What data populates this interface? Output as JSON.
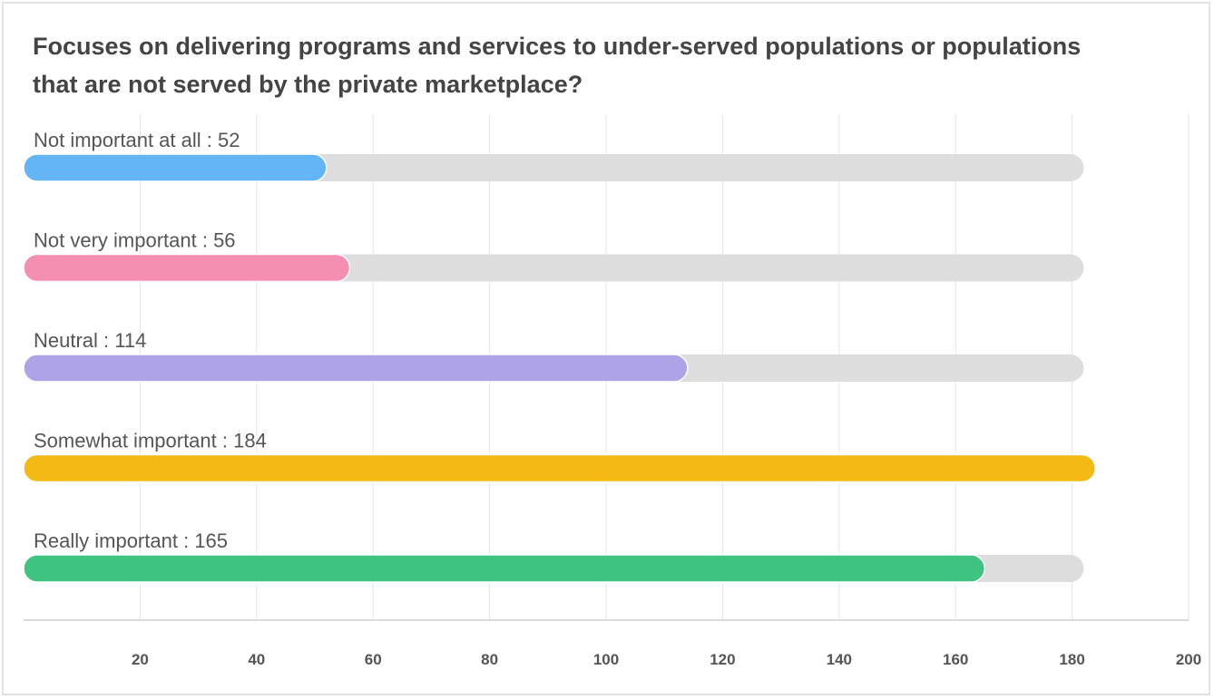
{
  "chart_data": {
    "type": "bar",
    "orientation": "horizontal",
    "title": "Focuses on delivering programs and services to under-served populations or populations that are not served by the private marketplace?",
    "categories": [
      "Not important at all",
      "Not very important",
      "Neutral",
      "Somewhat important",
      "Really important"
    ],
    "values": [
      52,
      56,
      114,
      184,
      165
    ],
    "colors": [
      "#64b5f6",
      "#f48fb1",
      "#ada3e6",
      "#f2ba12",
      "#3ec480"
    ],
    "track_color": "#dddddd",
    "track_max": 182,
    "xlim": [
      0,
      200
    ],
    "x_ticks": [
      20,
      40,
      60,
      80,
      100,
      120,
      140,
      160,
      180,
      200
    ],
    "grid": true,
    "label_separator": " : "
  }
}
